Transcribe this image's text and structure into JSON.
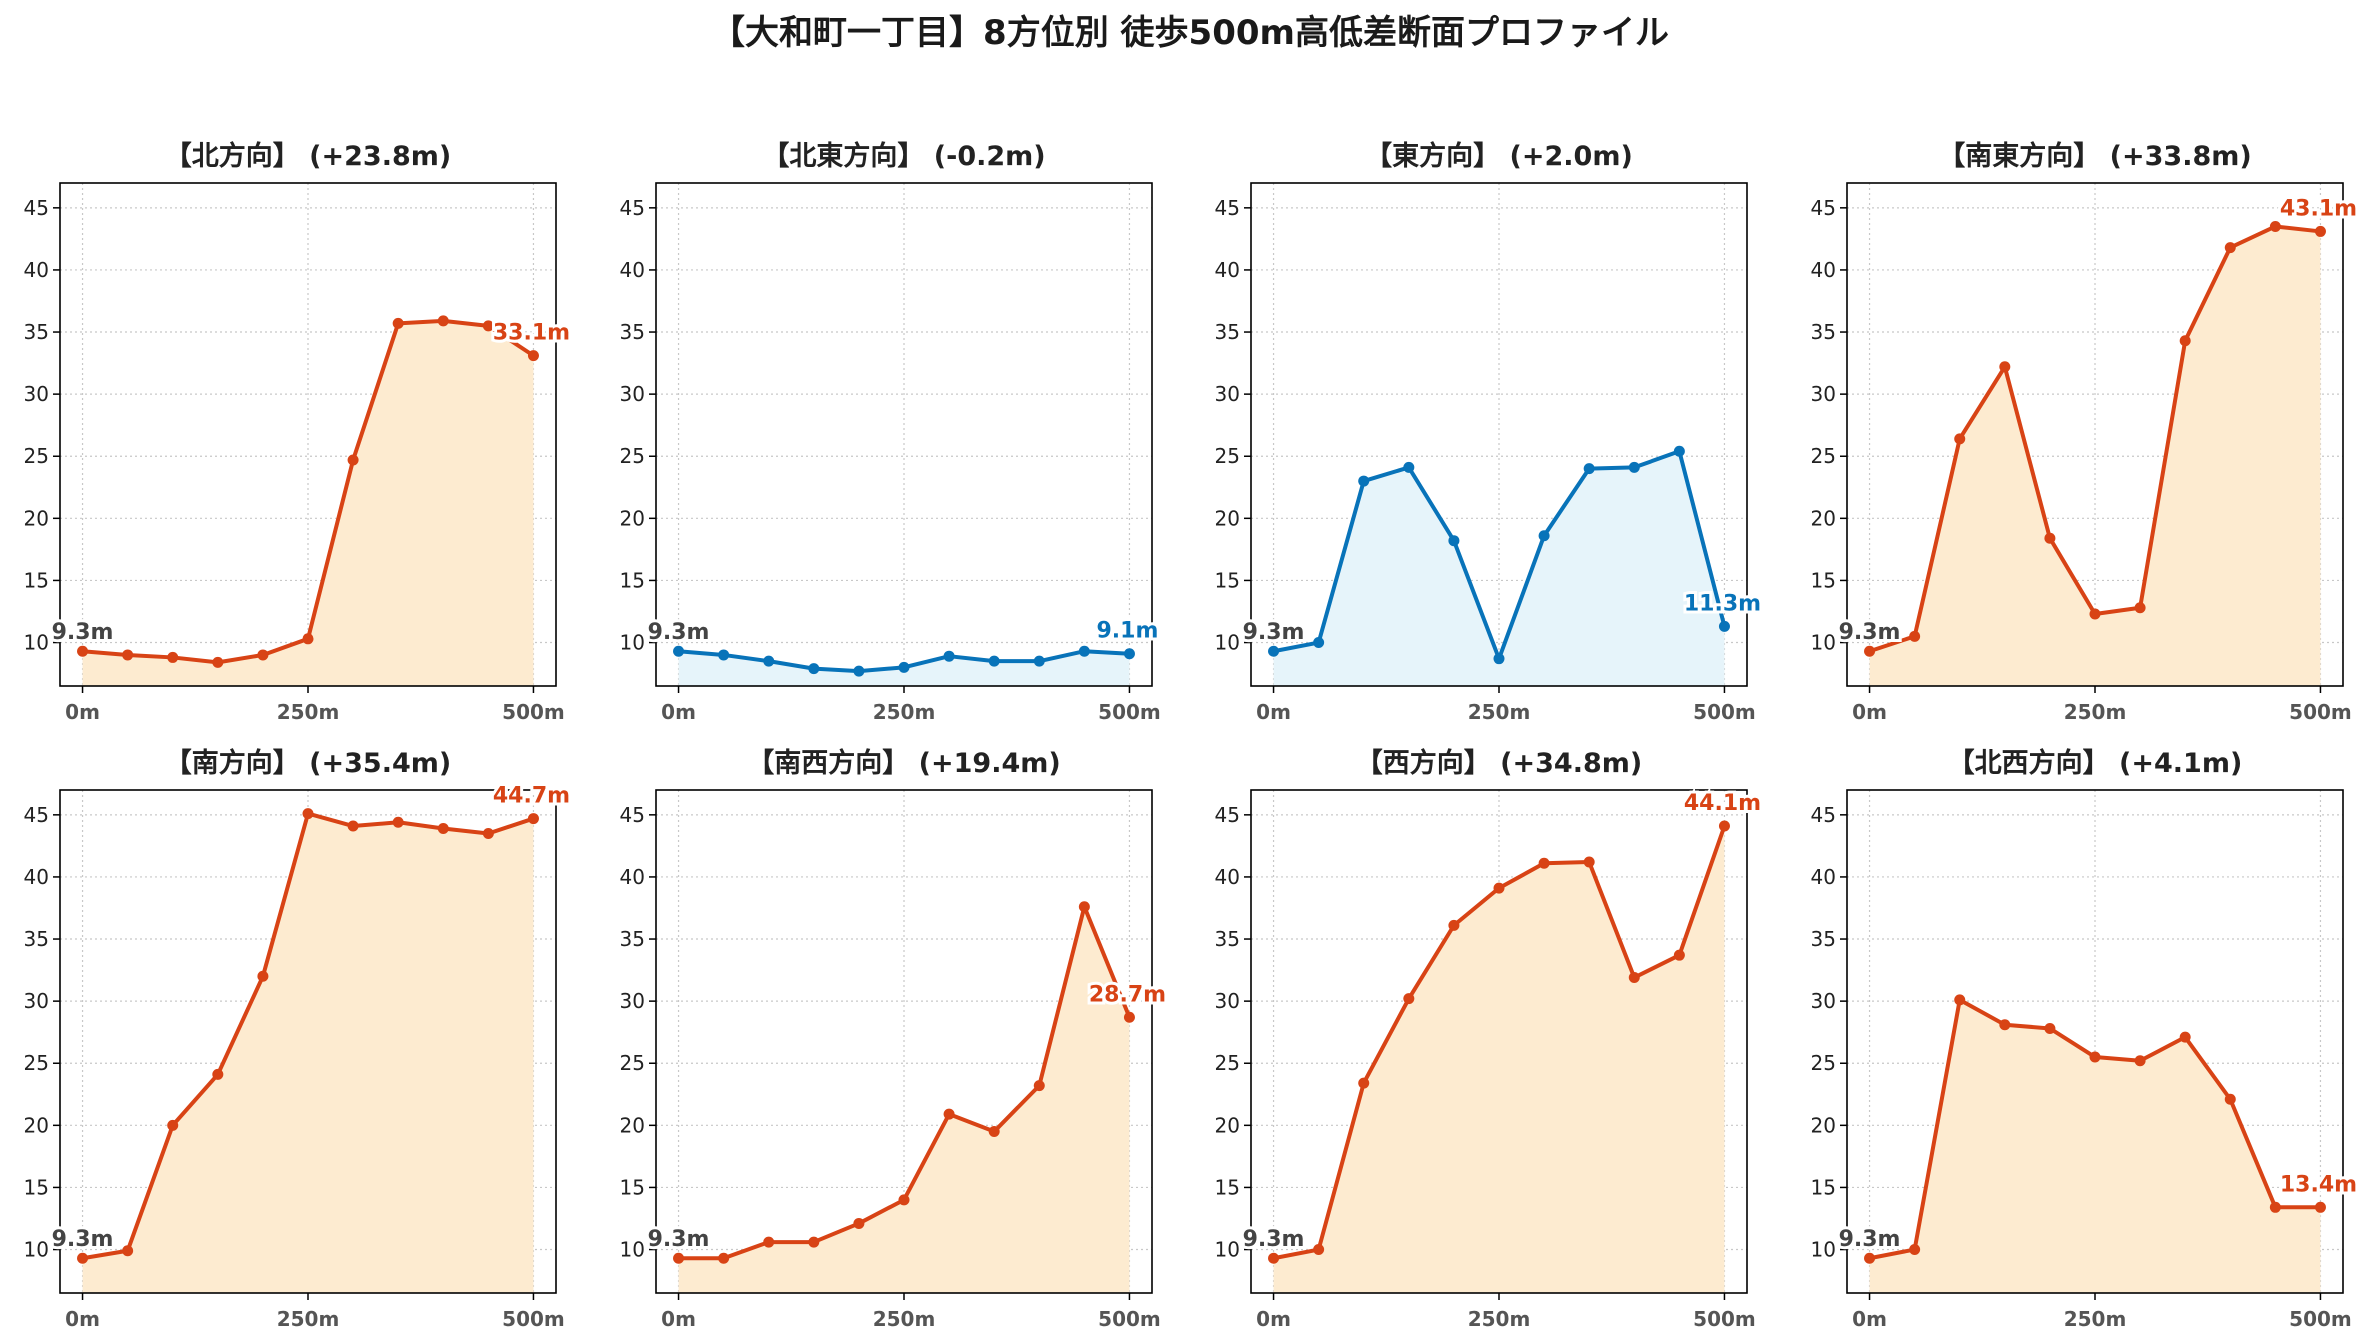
{
  "title": "【大和町一丁目】8方位別 徒歩500m高低差断面プロファイル",
  "colors": {
    "up_line": "#d84315",
    "up_fill": "#fdebd0",
    "flat_line": "#0873b9",
    "flat_fill": "#e6f4fa"
  },
  "chart_data": [
    {
      "type": "area",
      "title": "【北方向】 (+23.8m)",
      "x": [
        0,
        50,
        100,
        150,
        200,
        250,
        300,
        350,
        400,
        450,
        500
      ],
      "xticks": [
        "0m",
        "250m",
        "500m"
      ],
      "yticks": [
        "10",
        "15",
        "20",
        "25",
        "30",
        "35",
        "40",
        "45"
      ],
      "ylim": [
        6.5,
        47
      ],
      "grid": true,
      "style": "up",
      "values": [
        9.3,
        9.0,
        8.8,
        8.4,
        9.0,
        10.3,
        24.7,
        35.7,
        35.9,
        35.5,
        33.1
      ],
      "start_label": "9.3m",
      "end_label": "33.1m"
    },
    {
      "type": "area",
      "title": "【北東方向】 (-0.2m)",
      "x": [
        0,
        50,
        100,
        150,
        200,
        250,
        300,
        350,
        400,
        450,
        500
      ],
      "xticks": [
        "0m",
        "250m",
        "500m"
      ],
      "yticks": [
        "10",
        "15",
        "20",
        "25",
        "30",
        "35",
        "40",
        "45"
      ],
      "ylim": [
        6.5,
        47
      ],
      "grid": true,
      "style": "flat",
      "values": [
        9.3,
        9.0,
        8.5,
        7.9,
        7.7,
        8.0,
        8.9,
        8.5,
        8.5,
        9.3,
        9.1
      ],
      "start_label": "9.3m",
      "end_label": "9.1m"
    },
    {
      "type": "area",
      "title": "【東方向】 (+2.0m)",
      "x": [
        0,
        50,
        100,
        150,
        200,
        250,
        300,
        350,
        400,
        450,
        500
      ],
      "xticks": [
        "0m",
        "250m",
        "500m"
      ],
      "yticks": [
        "10",
        "15",
        "20",
        "25",
        "30",
        "35",
        "40",
        "45"
      ],
      "ylim": [
        6.5,
        47
      ],
      "grid": true,
      "style": "flat",
      "values": [
        9.3,
        10.0,
        23.0,
        24.1,
        18.2,
        8.7,
        18.6,
        24.0,
        24.1,
        25.4,
        11.3
      ],
      "start_label": "9.3m",
      "end_label": "11.3m"
    },
    {
      "type": "area",
      "title": "【南東方向】 (+33.8m)",
      "x": [
        0,
        50,
        100,
        150,
        200,
        250,
        300,
        350,
        400,
        450,
        500
      ],
      "xticks": [
        "0m",
        "250m",
        "500m"
      ],
      "yticks": [
        "10",
        "15",
        "20",
        "25",
        "30",
        "35",
        "40",
        "45"
      ],
      "ylim": [
        6.5,
        47
      ],
      "grid": true,
      "style": "up",
      "values": [
        9.3,
        10.5,
        26.4,
        32.2,
        18.4,
        12.3,
        12.8,
        34.3,
        41.8,
        43.5,
        43.1
      ],
      "start_label": "9.3m",
      "end_label": "43.1m"
    },
    {
      "type": "area",
      "title": "【南方向】 (+35.4m)",
      "x": [
        0,
        50,
        100,
        150,
        200,
        250,
        300,
        350,
        400,
        450,
        500
      ],
      "xticks": [
        "0m",
        "250m",
        "500m"
      ],
      "yticks": [
        "10",
        "15",
        "20",
        "25",
        "30",
        "35",
        "40",
        "45"
      ],
      "ylim": [
        6.5,
        47
      ],
      "grid": true,
      "style": "up",
      "values": [
        9.3,
        9.9,
        20.0,
        24.1,
        32.0,
        45.1,
        44.1,
        44.4,
        43.9,
        43.5,
        44.7
      ],
      "start_label": "9.3m",
      "end_label": "44.7m"
    },
    {
      "type": "area",
      "title": "【南西方向】 (+19.4m)",
      "x": [
        0,
        50,
        100,
        150,
        200,
        250,
        300,
        350,
        400,
        450,
        500
      ],
      "xticks": [
        "0m",
        "250m",
        "500m"
      ],
      "yticks": [
        "10",
        "15",
        "20",
        "25",
        "30",
        "35",
        "40",
        "45"
      ],
      "ylim": [
        6.5,
        47
      ],
      "grid": true,
      "style": "up",
      "values": [
        9.3,
        9.3,
        10.6,
        10.6,
        12.1,
        14.0,
        20.9,
        19.5,
        23.2,
        37.6,
        28.7
      ],
      "start_label": "9.3m",
      "end_label": "28.7m"
    },
    {
      "type": "area",
      "title": "【西方向】 (+34.8m)",
      "x": [
        0,
        50,
        100,
        150,
        200,
        250,
        300,
        350,
        400,
        450,
        500
      ],
      "xticks": [
        "0m",
        "250m",
        "500m"
      ],
      "yticks": [
        "10",
        "15",
        "20",
        "25",
        "30",
        "35",
        "40",
        "45"
      ],
      "ylim": [
        6.5,
        47
      ],
      "grid": true,
      "style": "up",
      "values": [
        9.3,
        10.0,
        23.4,
        30.2,
        36.1,
        39.1,
        41.1,
        41.2,
        31.9,
        33.7,
        44.1
      ],
      "start_label": "9.3m",
      "end_label": "44.1m"
    },
    {
      "type": "area",
      "title": "【北西方向】 (+4.1m)",
      "x": [
        0,
        50,
        100,
        150,
        200,
        250,
        300,
        350,
        400,
        450,
        500
      ],
      "xticks": [
        "0m",
        "250m",
        "500m"
      ],
      "yticks": [
        "10",
        "15",
        "20",
        "25",
        "30",
        "35",
        "40",
        "45"
      ],
      "ylim": [
        6.5,
        47
      ],
      "grid": true,
      "style": "up",
      "values": [
        9.3,
        10.0,
        30.1,
        28.1,
        27.8,
        25.5,
        25.2,
        27.1,
        22.1,
        13.4,
        13.4
      ],
      "start_label": "9.3m",
      "end_label": "13.4m"
    }
  ]
}
